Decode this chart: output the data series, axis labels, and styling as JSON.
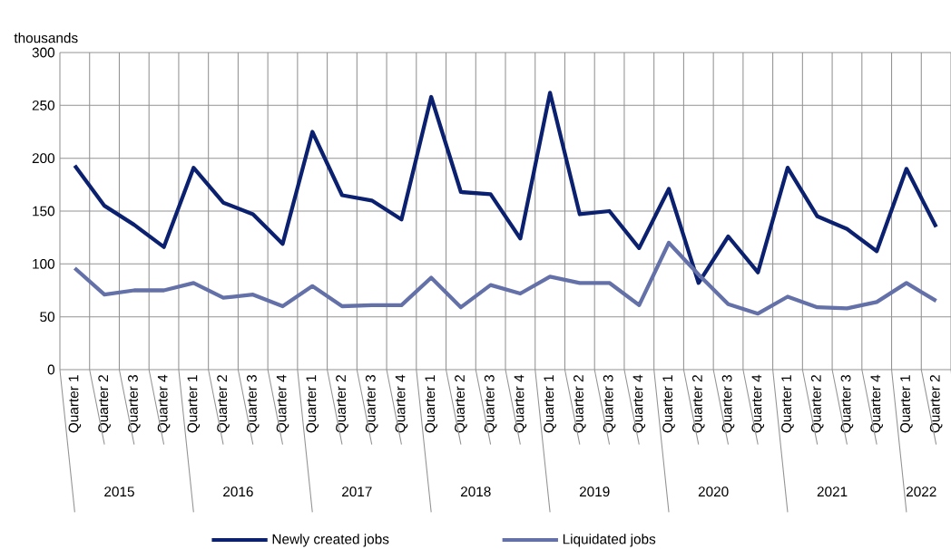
{
  "chart_data": {
    "type": "line",
    "ylabel": "thousands",
    "categories": [
      "Quarter 1",
      "Quarter 2",
      "Quarter 3",
      "Quarter 4",
      "Quarter 1",
      "Quarter 2",
      "Quarter 3",
      "Quarter 4",
      "Quarter 1",
      "Quarter 2",
      "Quarter 3",
      "Quarter 4",
      "Quarter 1",
      "Quarter 2",
      "Quarter 3",
      "Quarter 4",
      "Quarter 1",
      "Quarter 2",
      "Quarter 3",
      "Quarter 4",
      "Quarter 1",
      "Quarter 2",
      "Quarter 3",
      "Quarter 4",
      "Quarter 1",
      "Quarter 2",
      "Quarter 3",
      "Quarter 4",
      "Quarter 1",
      "Quarter 2"
    ],
    "annotations": [
      "2015",
      "2016",
      "2017",
      "2018",
      "2019",
      "2020",
      "2021",
      "2022"
    ],
    "series": [
      {
        "name": "Newly created jobs",
        "color": "#0b2170",
        "values": [
          193,
          155,
          137,
          116,
          191,
          158,
          147,
          119,
          225,
          165,
          160,
          142,
          258,
          168,
          166,
          124,
          262,
          147,
          150,
          115,
          171,
          82,
          126,
          92,
          191,
          145,
          133,
          112,
          190,
          135
        ]
      },
      {
        "name": "Liquidated jobs",
        "color": "#6471a8",
        "values": [
          96,
          71,
          75,
          75,
          82,
          68,
          71,
          60,
          79,
          60,
          61,
          61,
          87,
          59,
          80,
          72,
          88,
          82,
          82,
          61,
          120,
          90,
          62,
          53,
          69,
          59,
          58,
          64,
          82,
          65
        ]
      }
    ],
    "ylim": [
      0,
      300
    ],
    "yticks": [
      0,
      50,
      100,
      150,
      200,
      250,
      300
    ],
    "grid": true,
    "legend": "bottom",
    "line_style": "solid",
    "marker": "none"
  }
}
